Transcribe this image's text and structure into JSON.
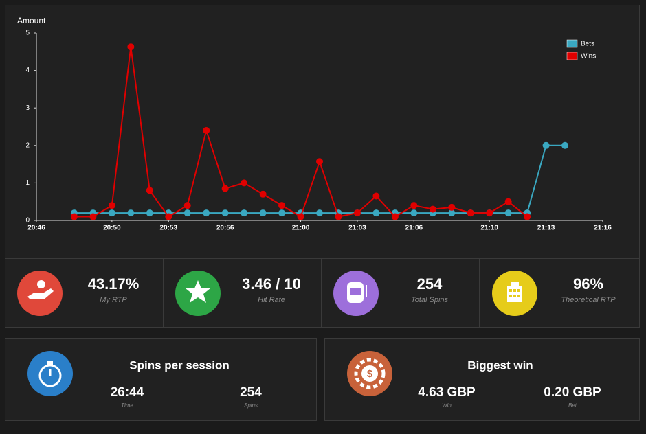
{
  "chart_data": {
    "type": "line",
    "ylabel": "Amount",
    "x": [
      "20:48",
      "20:49",
      "20:50",
      "20:51",
      "20:52",
      "20:53",
      "20:54",
      "20:55",
      "20:56",
      "20:57",
      "20:58",
      "20:59",
      "21:00",
      "21:01",
      "21:02",
      "21:03",
      "21:04",
      "21:05",
      "21:06",
      "21:07",
      "21:08",
      "21:09",
      "21:10",
      "21:11",
      "21:12",
      "21:13",
      "21:14"
    ],
    "series": [
      {
        "name": "Bets",
        "color": "#3aa8c1",
        "values": [
          0.2,
          0.2,
          0.2,
          0.2,
          0.2,
          0.2,
          0.2,
          0.2,
          0.2,
          0.2,
          0.2,
          0.2,
          0.2,
          0.2,
          0.2,
          0.2,
          0.2,
          0.2,
          0.2,
          0.2,
          0.2,
          0.2,
          0.2,
          0.2,
          0.2,
          2,
          2
        ]
      },
      {
        "name": "Wins",
        "color": "#e00000",
        "values": [
          0.1,
          0.1,
          0.4,
          4.63,
          0.8,
          0.1,
          0.4,
          2.4,
          0.85,
          1.0,
          0.7,
          0.4,
          0.1,
          1.57,
          0.1,
          0.2,
          0.65,
          0.1,
          0.4,
          0.3,
          0.35,
          0.2,
          0.2,
          0.5,
          0.1,
          null,
          null
        ]
      }
    ],
    "xlim": [
      "20:46",
      "21:16"
    ],
    "xticks": [
      "20:46",
      "20:50",
      "20:53",
      "20:56",
      "21:00",
      "21:03",
      "21:06",
      "21:10",
      "21:13",
      "21:16"
    ],
    "ylim": [
      0,
      5
    ],
    "yticks": [
      0,
      1,
      2,
      3,
      4,
      5
    ],
    "grid": false,
    "legend": "upper right"
  },
  "stats": [
    {
      "value": "43.17%",
      "label": "My RTP"
    },
    {
      "value": "3.46 / 10",
      "label": "Hit Rate"
    },
    {
      "value": "254",
      "label": "Total Spins"
    },
    {
      "value": "96%",
      "label": "Theoretical RTP"
    }
  ],
  "panels": [
    {
      "title": "Spins per session",
      "items": [
        {
          "value": "26:44",
          "label": "Time"
        },
        {
          "value": "254",
          "label": "Spins"
        }
      ]
    },
    {
      "title": "Biggest win",
      "items": [
        {
          "value": "4.63 GBP",
          "label": "Win"
        },
        {
          "value": "0.20 GBP",
          "label": "Bet"
        }
      ]
    }
  ]
}
